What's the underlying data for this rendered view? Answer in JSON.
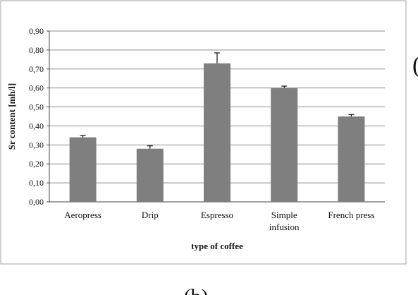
{
  "chart_data": {
    "type": "bar",
    "title": "",
    "xlabel": "type of coffee",
    "ylabel": "Sr content [mh/l]",
    "categories": [
      "Aeropress",
      "Drip",
      "Espresso",
      "Simple infusion",
      "French press"
    ],
    "category_lines": [
      [
        "Aeropress"
      ],
      [
        "Drip"
      ],
      [
        "Espresso"
      ],
      [
        "Simple",
        "infusion"
      ],
      [
        "French press"
      ]
    ],
    "values": [
      0.34,
      0.28,
      0.73,
      0.6,
      0.45
    ],
    "errors": [
      0.01,
      0.015,
      0.055,
      0.01,
      0.01
    ],
    "ylim": [
      0,
      0.9
    ],
    "yticks": [
      "0,00",
      "0,10",
      "0,20",
      "0,30",
      "0,40",
      "0,50",
      "0,60",
      "0,70",
      "0,80",
      "0,90"
    ],
    "grid": true,
    "legend": "none",
    "bar_color": "#7f7f7f",
    "grid_color": "#8c8c8c"
  },
  "panel_label_partial": "(",
  "caption_partial": "(b)"
}
